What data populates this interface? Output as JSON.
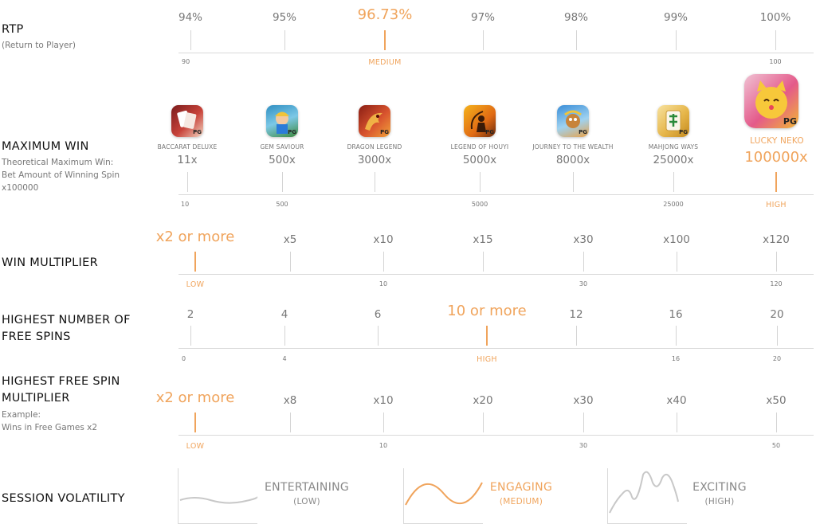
{
  "rtp": {
    "title": "RTP",
    "subtitle": "(Return to Player)",
    "values": [
      "94%",
      "95%",
      "96.73%",
      "97%",
      "98%",
      "99%",
      "100%"
    ],
    "scale": [
      "90",
      "MEDIUM",
      "100"
    ]
  },
  "max_win": {
    "title": "MAXIMUM WIN",
    "subtitle_lines": [
      "Theoretical Maximum Win:",
      "Bet Amount of Winning Spin",
      "x100000"
    ],
    "games": [
      {
        "name": "BACCARAT DELUXE",
        "value": "11x",
        "icon": "baccarat-deluxe-icon",
        "color": "#b8322e"
      },
      {
        "name": "GEM SAVIOUR",
        "value": "500x",
        "icon": "gem-saviour-icon",
        "color": "#3aa6c8"
      },
      {
        "name": "DRAGON LEGEND",
        "value": "3000x",
        "icon": "dragon-legend-icon",
        "color": "#c8432a"
      },
      {
        "name": "LEGEND OF HOUYI",
        "value": "5000x",
        "icon": "legend-of-houyi-icon",
        "color": "#e08a1c"
      },
      {
        "name": "JOURNEY TO THE WEALTH",
        "value": "8000x",
        "icon": "journey-to-the-wealth-icon",
        "color": "#4a9ad8"
      },
      {
        "name": "MAHJONG WAYS",
        "value": "25000x",
        "icon": "mahjong-ways-icon",
        "color": "#d9a437"
      },
      {
        "name": "LUCKY NEKO",
        "value": "100000x",
        "icon": "lucky-neko-icon",
        "color": "#e23a6a"
      }
    ],
    "scale": [
      "10",
      "500",
      "5000",
      "25000",
      "HIGH"
    ]
  },
  "win_multiplier": {
    "title": "WIN MULTIPLIER",
    "values": [
      "x2 or more",
      "x5",
      "x10",
      "x15",
      "x30",
      "x100",
      "x120"
    ],
    "scale": [
      "LOW",
      "10",
      "30",
      "120"
    ]
  },
  "free_spins": {
    "title_lines": [
      "HIGHEST NUMBER OF",
      "FREE SPINS"
    ],
    "values": [
      "2",
      "4",
      "6",
      "10 or more",
      "12",
      "16",
      "20"
    ],
    "scale": [
      "0",
      "4",
      "HIGH",
      "16",
      "20"
    ]
  },
  "free_spin_multiplier": {
    "title_lines": [
      "HIGHEST FREE SPIN",
      "MULTIPLIER"
    ],
    "subtitle_lines": [
      "Example:",
      "Wins in Free Games x2"
    ],
    "values": [
      "x2 or more",
      "x8",
      "x10",
      "x20",
      "x30",
      "x40",
      "x50"
    ],
    "scale": [
      "LOW",
      "10",
      "30",
      "50"
    ]
  },
  "volatility": {
    "title": "SESSION VOLATILITY",
    "options": [
      {
        "name": "ENTERTAINING",
        "level": "(LOW)"
      },
      {
        "name": "ENGAGING",
        "level": "(MEDIUM)"
      },
      {
        "name": "EXCITING",
        "level": "(HIGH)"
      }
    ]
  },
  "colors": {
    "accent": "#f0a45c",
    "text": "#777777",
    "line": "#d9d9d9"
  }
}
